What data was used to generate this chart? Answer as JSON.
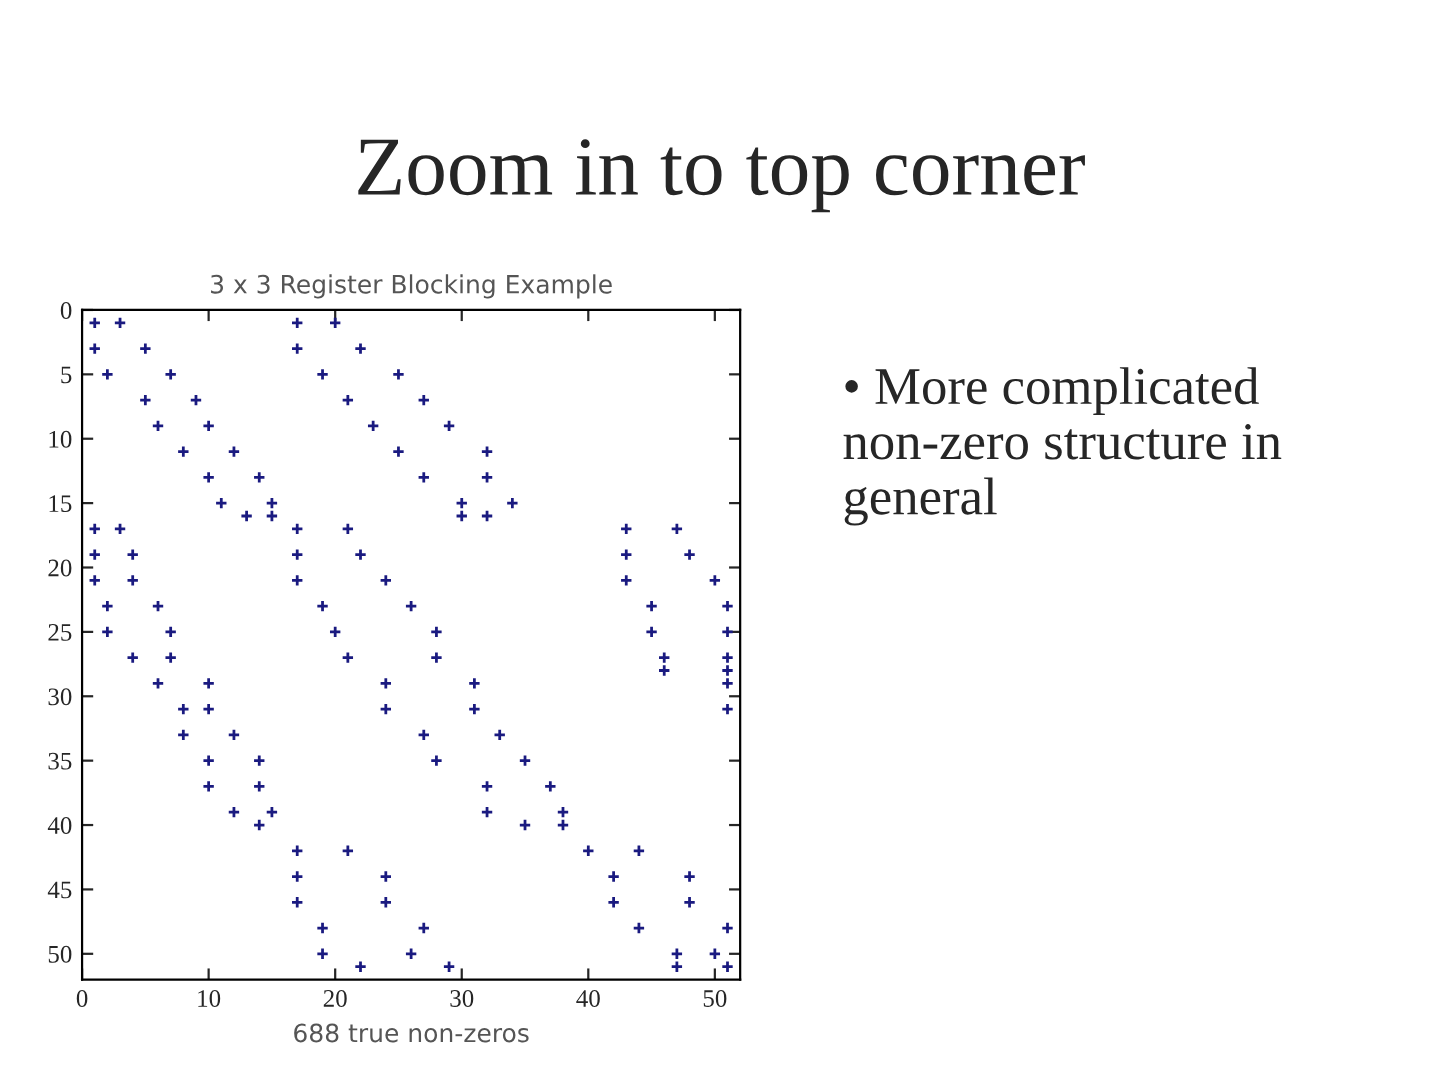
{
  "chart_data": {
    "type": "scatter",
    "title": "Zoom in to top corner",
    "subtitle": "3 x 3 Register Blocking Example",
    "xlabel": "688 true non-zeros",
    "annotations": [
      "• More complicated non-zero structure in general"
    ],
    "xlim": [
      0,
      52
    ],
    "ylim": [
      52,
      0
    ],
    "xticks": [
      0,
      10,
      20,
      30,
      40,
      50
    ],
    "yticks": [
      0,
      5,
      10,
      15,
      20,
      25,
      30,
      35,
      40,
      45,
      50
    ],
    "marker": "cross",
    "grid": false,
    "legend": false,
    "series": [
      {
        "color": "#1a1a80",
        "x": [
          1,
          3,
          1,
          5,
          2,
          7,
          5,
          9,
          6,
          10,
          8,
          12,
          10,
          14,
          11,
          15,
          13,
          15,
          17,
          20,
          17,
          22,
          19,
          25,
          21,
          27,
          23,
          29,
          25,
          32,
          27,
          32,
          30,
          34,
          30,
          32,
          1,
          3,
          1,
          4,
          1,
          4,
          2,
          6,
          2,
          7,
          4,
          7,
          6,
          10,
          8,
          10,
          8,
          12,
          10,
          14,
          10,
          14,
          12,
          15,
          14,
          17,
          21,
          17,
          22,
          17,
          24,
          19,
          26,
          20,
          28,
          21,
          28,
          24,
          31,
          24,
          31,
          27,
          33,
          28,
          35,
          32,
          37,
          32,
          38,
          35,
          38,
          43,
          47,
          43,
          48,
          43,
          50,
          45,
          51,
          45,
          51,
          46,
          51,
          46,
          51,
          51,
          51,
          17,
          21,
          17,
          24,
          17,
          24,
          19,
          27,
          19,
          26,
          22,
          29,
          40,
          44,
          42,
          48,
          42,
          48,
          44,
          51,
          47,
          50,
          47,
          51
        ],
        "values": [
          1,
          1,
          3,
          3,
          5,
          5,
          7,
          7,
          9,
          9,
          11,
          11,
          13,
          13,
          15,
          15,
          16,
          16,
          1,
          1,
          3,
          3,
          5,
          5,
          7,
          7,
          9,
          9,
          11,
          11,
          13,
          13,
          15,
          15,
          16,
          16,
          17,
          17,
          19,
          19,
          21,
          21,
          23,
          23,
          25,
          25,
          27,
          27,
          29,
          29,
          31,
          31,
          33,
          33,
          35,
          35,
          37,
          37,
          39,
          39,
          40,
          17,
          17,
          19,
          19,
          21,
          21,
          23,
          23,
          25,
          25,
          27,
          27,
          29,
          29,
          31,
          31,
          33,
          33,
          35,
          35,
          37,
          37,
          39,
          39,
          40,
          40,
          17,
          17,
          19,
          19,
          21,
          21,
          23,
          23,
          25,
          25,
          27,
          27,
          28,
          28,
          29,
          31,
          42,
          42,
          44,
          44,
          46,
          46,
          48,
          48,
          50,
          50,
          51,
          51,
          42,
          42,
          44,
          44,
          46,
          46,
          48,
          48,
          50,
          50,
          51,
          51
        ]
      }
    ]
  }
}
